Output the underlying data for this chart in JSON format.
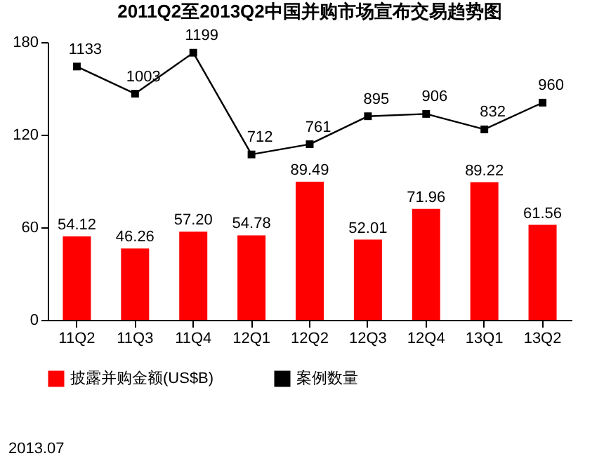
{
  "chart_data": {
    "type": "bar",
    "title": "2011Q2至2013Q2中国并购市场宣布交易趋势图",
    "categories": [
      "11Q2",
      "11Q3",
      "11Q4",
      "12Q1",
      "12Q2",
      "12Q3",
      "12Q4",
      "13Q1",
      "13Q2"
    ],
    "series": [
      {
        "name": "披露并购金额(US$B)",
        "color": "#ff0000",
        "values": [
          54.12,
          46.26,
          57.2,
          54.78,
          89.49,
          52.01,
          71.96,
          89.22,
          61.56
        ],
        "value_labels": [
          "54.12",
          "46.26",
          "57.20",
          "54.78",
          "89.49",
          "52.01",
          "71.96",
          "89.22",
          "61.56"
        ]
      },
      {
        "name": "案例数量",
        "type": "line",
        "axis": "y2",
        "color": "#000000",
        "values": [
          1133,
          1003,
          1199,
          712,
          761,
          895,
          906,
          832,
          960
        ],
        "value_labels": [
          "1133",
          "1003",
          "1199",
          "712",
          "761",
          "895",
          "906",
          "832",
          "960"
        ]
      }
    ],
    "ylim": [
      0,
      180
    ],
    "yticks": [
      0,
      60,
      120,
      180
    ],
    "y2lim": [
      -80,
      1250
    ],
    "marker": "square",
    "line_style": "solid",
    "legend": "bottom",
    "annotations": [
      "2013.07"
    ]
  }
}
